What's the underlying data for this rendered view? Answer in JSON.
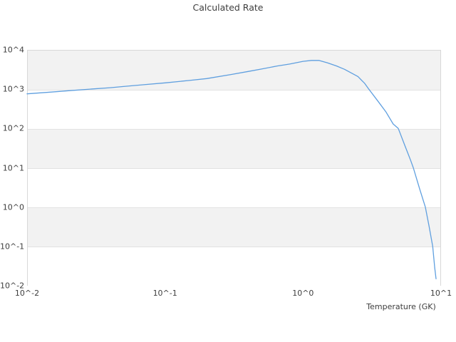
{
  "chart_data": {
    "type": "line",
    "title": "Calculated Rate",
    "xlabel": "Temperature (GK)",
    "ylabel": "",
    "x_scale": "log",
    "y_scale": "log",
    "xlim": [
      0.01,
      10
    ],
    "ylim": [
      0.01,
      10000
    ],
    "x_tick_labels": [
      "10^-2",
      "10^-1",
      "10^0",
      "10^1"
    ],
    "y_tick_labels": [
      "10^4",
      "10^3",
      "10^2",
      "10^1",
      "10^0",
      "10^-1",
      "10^-2"
    ],
    "grid": "horizontal-alternating-bands",
    "legend": "none",
    "series": [
      {
        "name": "calculated-rate",
        "color": "#5f9fdf",
        "points": [
          [
            0.01,
            760
          ],
          [
            0.015,
            845
          ],
          [
            0.02,
            915
          ],
          [
            0.03,
            1015
          ],
          [
            0.04,
            1090
          ],
          [
            0.05,
            1170
          ],
          [
            0.07,
            1300
          ],
          [
            0.1,
            1450
          ],
          [
            0.15,
            1670
          ],
          [
            0.2,
            1860
          ],
          [
            0.3,
            2360
          ],
          [
            0.4,
            2820
          ],
          [
            0.5,
            3250
          ],
          [
            0.65,
            3900
          ],
          [
            0.8,
            4350
          ],
          [
            1.0,
            5100
          ],
          [
            1.15,
            5400
          ],
          [
            1.3,
            5400
          ],
          [
            1.5,
            4700
          ],
          [
            1.75,
            3900
          ],
          [
            2.0,
            3200
          ],
          [
            2.5,
            2100
          ],
          [
            2.8,
            1400
          ],
          [
            3.0,
            1000
          ],
          [
            3.5,
            490
          ],
          [
            4.0,
            260
          ],
          [
            4.5,
            130
          ],
          [
            4.9,
            100
          ],
          [
            5.5,
            35
          ],
          [
            6.0,
            16
          ],
          [
            6.3,
            10
          ],
          [
            7.0,
            2.9
          ],
          [
            7.7,
            1.0
          ],
          [
            8.2,
            0.32
          ],
          [
            8.7,
            0.1
          ],
          [
            9.0,
            0.029
          ],
          [
            9.2,
            0.015
          ]
        ]
      }
    ],
    "colors": {
      "band_gray": "#f2f2f2",
      "band_white": "#ffffff",
      "gridline": "#e2e2e2",
      "border": "#d8d8d8",
      "text": "#3d3d3d",
      "background": "#ffffff"
    }
  }
}
